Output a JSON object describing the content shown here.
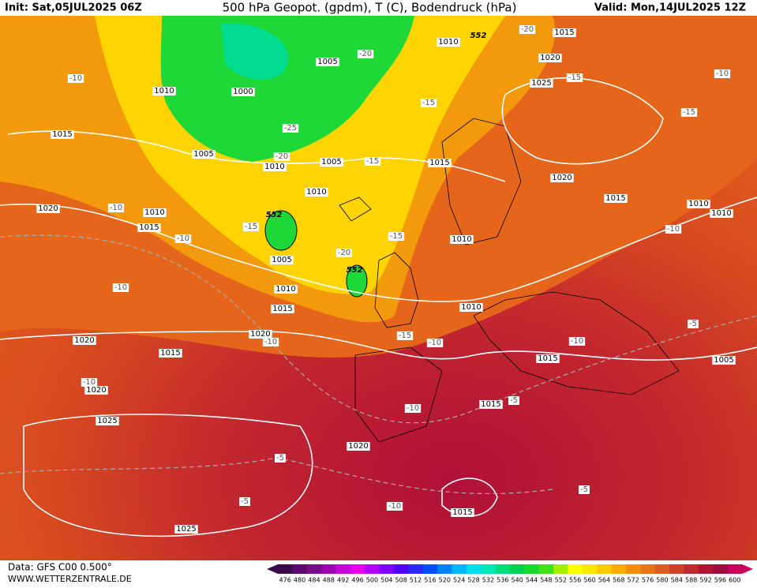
{
  "header": {
    "init": "Init: Sat,05JUL2025 06Z",
    "title": "500 hPa Geopot. (gpdm), T (C), Bodendruck (hPa)",
    "valid": "Valid: Mon,14JUL2025 12Z"
  },
  "isobar_labels": [
    "1010",
    "1015",
    "1020",
    "1025",
    "1005",
    "1010",
    "1000",
    "1015",
    "1005",
    "1010",
    "1005",
    "1015",
    "1020",
    "1015",
    "1010",
    "1010",
    "1015",
    "1020",
    "1010",
    "1010",
    "1010",
    "1005",
    "1010",
    "1015",
    "1010",
    "1020",
    "1020",
    "1015",
    "1015",
    "1005",
    "1020",
    "1015",
    "1025",
    "1020",
    "1015",
    "1025"
  ],
  "temperature_labels": [
    "-20",
    "-20",
    "-15",
    "-10",
    "-10",
    "-15",
    "-15",
    "-25",
    "-20",
    "-15",
    "-10",
    "-15",
    "-10",
    "-15",
    "-10",
    "-20",
    "-10",
    "-10",
    "-15",
    "-10",
    "-10",
    "-5",
    "-10",
    "-5",
    "-10",
    "-5",
    "-5",
    "-10",
    "-5"
  ],
  "geopotential_labels": [
    "552",
    "552",
    "552"
  ],
  "colorbar": {
    "ticks": [
      476,
      480,
      484,
      488,
      492,
      496,
      500,
      504,
      508,
      512,
      516,
      520,
      524,
      528,
      532,
      536,
      540,
      544,
      548,
      552,
      556,
      560,
      564,
      568,
      572,
      576,
      580,
      584,
      588,
      592,
      596,
      600
    ],
    "colors": [
      "#3c0a4a",
      "#5a0a6e",
      "#780a8c",
      "#a000b4",
      "#c800dc",
      "#e600f0",
      "#b400ff",
      "#8200ff",
      "#5000ff",
      "#2828ff",
      "#0050ff",
      "#0082ff",
      "#00b4ff",
      "#00dcf0",
      "#00e6b4",
      "#00dc78",
      "#00d250",
      "#14dc28",
      "#3ce614",
      "#a0f000",
      "#ffff00",
      "#ffe600",
      "#ffc800",
      "#ffaa00",
      "#f58c0a",
      "#eb7314",
      "#e15a1e",
      "#d24123",
      "#c3282d",
      "#b41432",
      "#a00a3c",
      "#c8005a"
    ]
  },
  "footer": {
    "data": "Data: GFS C00 0.500°",
    "site": "WWW.WETTERZENTRALE.DE"
  }
}
